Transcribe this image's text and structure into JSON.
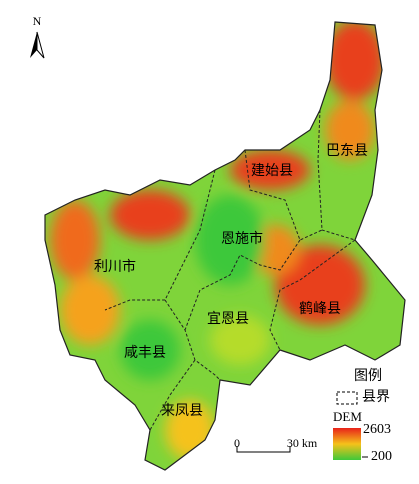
{
  "north": "N",
  "counties": [
    {
      "label": "建始县"
    },
    {
      "label": "巴东县"
    },
    {
      "label": "恩施市"
    },
    {
      "label": "利川市"
    },
    {
      "label": "宜恩县"
    },
    {
      "label": "鹤峰县"
    },
    {
      "label": "咸丰县"
    },
    {
      "label": "来凤县"
    }
  ],
  "legend": {
    "title": "图例",
    "boundary": "县界",
    "dem_title": "DEM",
    "dem_max": 2603,
    "dem_min": 200
  },
  "scale_bar": {
    "start": "0",
    "end": "30 km"
  }
}
